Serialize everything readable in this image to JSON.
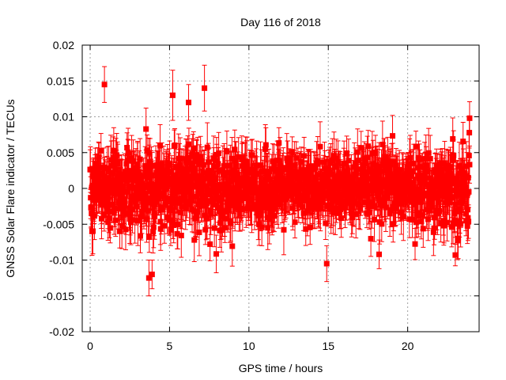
{
  "chart_data": {
    "type": "scatter",
    "title": "Day 116 of 2018",
    "xlabel": "GPS time / hours",
    "ylabel": "GNSS Solar Flare indicator / TECUs",
    "xlim": [
      -0.5,
      24.5
    ],
    "ylim": [
      -0.02,
      0.02
    ],
    "x_ticks": [
      0,
      5,
      10,
      15,
      20
    ],
    "y_ticks": [
      -0.02,
      -0.015,
      -0.01,
      -0.005,
      0,
      0.005,
      0.01,
      0.015,
      0.02
    ],
    "x_tick_labels": [
      "0",
      "5",
      "10",
      "15",
      "20"
    ],
    "y_tick_labels": [
      "-0.02",
      "-0.015",
      "-0.01",
      "-0.005",
      "0",
      "0.005",
      "0.01",
      "0.015",
      "0.02"
    ],
    "grid": true,
    "marker": "square",
    "error_bars": true,
    "series_color": "#ff0000",
    "series": [
      {
        "x_range": [
          0,
          23.9
        ],
        "mean": 0.0,
        "approx_spread": 0.005,
        "approx_error": 0.0025,
        "notable_points": [
          {
            "x": 0.9,
            "y": 0.0145,
            "err": 0.0025
          },
          {
            "x": 5.2,
            "y": 0.013,
            "err": 0.0035
          },
          {
            "x": 6.2,
            "y": 0.012,
            "err": 0.0025
          },
          {
            "x": 7.2,
            "y": 0.014,
            "err": 0.0032
          },
          {
            "x": 3.7,
            "y": -0.0125,
            "err": 0.0025
          },
          {
            "x": 3.9,
            "y": -0.012,
            "err": 0.002
          },
          {
            "x": 14.9,
            "y": -0.0105,
            "err": 0.0025
          },
          {
            "x": 18.2,
            "y": -0.0092,
            "err": 0.002
          },
          {
            "x": 23.0,
            "y": -0.0093,
            "err": 0.0015
          },
          {
            "x": 23.9,
            "y": 0.0098,
            "err": 0.0023
          }
        ]
      }
    ]
  }
}
